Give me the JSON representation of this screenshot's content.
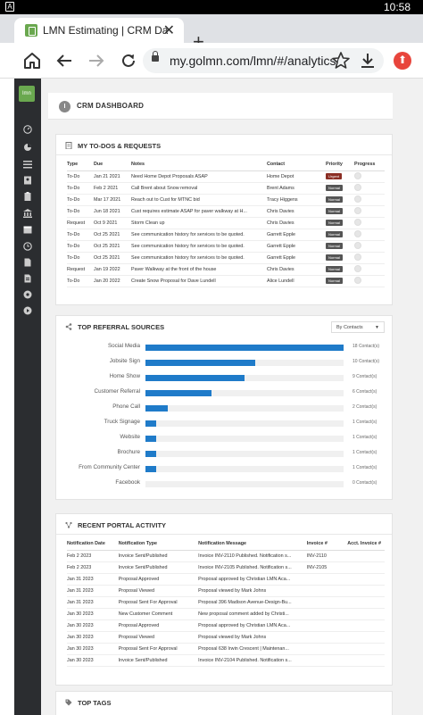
{
  "status_bar": {
    "time": "10:58",
    "notification_icon": "A"
  },
  "browser": {
    "tab_title": "LMN Estimating | CRM Dashb",
    "tab_close": "✕",
    "new_tab": "+",
    "url": "my.golmn.com/lmn/#/analytics/"
  },
  "app": {
    "logo_text": "lmn",
    "page_title": "CRM DASHBOARD",
    "sidebar_icons": [
      "speedometer-icon",
      "pie-chart-icon",
      "list-icon",
      "contact-card-icon",
      "clipboard-icon",
      "bank-icon",
      "calendar-icon",
      "clock-icon",
      "document-icon",
      "file-icon",
      "settings-gear-icon",
      "play-circle-icon"
    ]
  },
  "todos": {
    "title": "MY TO-DOS & REQUESTS",
    "columns": [
      "Type",
      "Due",
      "Notes",
      "Contact",
      "Priority",
      "Progress"
    ],
    "rows": [
      {
        "type": "To-Do",
        "due": "Jan 21 2021",
        "notes": "Need Home Depot Proposals ASAP",
        "contact": "Home Depot",
        "priority": "Urgent"
      },
      {
        "type": "To-Do",
        "due": "Feb 2 2021",
        "notes": "Call Brent about Snow removal",
        "contact": "Brent Adams",
        "priority": "Normal"
      },
      {
        "type": "To-Do",
        "due": "Mar 17 2021",
        "notes": "Reach out to Cust for MTNC bid",
        "contact": "Tracy Higgens",
        "priority": "Normal"
      },
      {
        "type": "To-Do",
        "due": "Jun 18 2021",
        "notes": "Cust requires estimate ASAP for paver walkway at H...",
        "contact": "Chris Davies",
        "priority": "Normal"
      },
      {
        "type": "Request",
        "due": "Oct 9 2021",
        "notes": "Storm Clean up",
        "contact": "Chris Davies",
        "priority": "Normal"
      },
      {
        "type": "To-Do",
        "due": "Oct 25 2021",
        "notes": "See communication history for services to be quoted.",
        "contact": "Garrett Epple",
        "priority": "Normal"
      },
      {
        "type": "To-Do",
        "due": "Oct 25 2021",
        "notes": "See communication history for services to be quoted.",
        "contact": "Garrett Epple",
        "priority": "Normal"
      },
      {
        "type": "To-Do",
        "due": "Oct 25 2021",
        "notes": "See communication history for services to be quoted.",
        "contact": "Garrett Epple",
        "priority": "Normal"
      },
      {
        "type": "Request",
        "due": "Jan 19 2022",
        "notes": "Paver Walkway at the front of the house",
        "contact": "Chris Davies",
        "priority": "Normal"
      },
      {
        "type": "To-Do",
        "due": "Jan 20 2022",
        "notes": "Create Snow Proposal for Dave Lundell",
        "contact": "Alice Lundell",
        "priority": "Normal"
      }
    ]
  },
  "referrals": {
    "title": "TOP REFERRAL SOURCES",
    "dropdown": "By Contacts",
    "max": 18,
    "items": [
      {
        "label": "Social Media",
        "value": 18,
        "text": "18 Contact(s)"
      },
      {
        "label": "Jobsite Sign",
        "value": 10,
        "text": "10 Contact(s)"
      },
      {
        "label": "Home Show",
        "value": 9,
        "text": "9 Contact(s)"
      },
      {
        "label": "Customer Referral",
        "value": 6,
        "text": "6 Contact(s)"
      },
      {
        "label": "Phone Call",
        "value": 2,
        "text": "2 Contact(s)"
      },
      {
        "label": "Truck Signage",
        "value": 1,
        "text": "1 Contact(s)"
      },
      {
        "label": "Website",
        "value": 1,
        "text": "1 Contact(s)"
      },
      {
        "label": "Brochure",
        "value": 1,
        "text": "1 Contact(s)"
      },
      {
        "label": "From Community Center",
        "value": 1,
        "text": "1 Contact(s)"
      },
      {
        "label": "Facebook",
        "value": 0,
        "text": "0 Contact(s)"
      }
    ]
  },
  "portal": {
    "title": "RECENT PORTAL ACTIVITY",
    "columns": [
      "Notification Date",
      "Notification Type",
      "Notification Message",
      "Invoice #",
      "Acct. Invoice #"
    ],
    "rows": [
      {
        "date": "Feb 2 2023",
        "type": "Invoice Sent/Published",
        "message": "Invoice INV-2110 Published. Notification s...",
        "invoice": "INV-2110",
        "acct": ""
      },
      {
        "date": "Feb 2 2023",
        "type": "Invoice Sent/Published",
        "message": "Invoice INV-2105 Published. Notification s...",
        "invoice": "INV-2105",
        "acct": ""
      },
      {
        "date": "Jan 31 2023",
        "type": "Proposal Approved",
        "message": "Proposal approved by Christian LMN Aca...",
        "invoice": "",
        "acct": ""
      },
      {
        "date": "Jan 31 2023",
        "type": "Proposal Viewed",
        "message": "Proposal viewed by Mark Johns",
        "invoice": "",
        "acct": ""
      },
      {
        "date": "Jan 31 2023",
        "type": "Proposal Sent For Approval",
        "message": "Proposal 396 Madison Avenue-Design-Bu...",
        "invoice": "",
        "acct": ""
      },
      {
        "date": "Jan 30 2023",
        "type": "New Customer Comment",
        "message": "New proposal comment added by Christi...",
        "invoice": "",
        "acct": ""
      },
      {
        "date": "Jan 30 2023",
        "type": "Proposal Approved",
        "message": "Proposal approved by Christian LMN Aca...",
        "invoice": "",
        "acct": ""
      },
      {
        "date": "Jan 30 2023",
        "type": "Proposal Viewed",
        "message": "Proposal viewed by Mark Johns",
        "invoice": "",
        "acct": ""
      },
      {
        "date": "Jan 30 2023",
        "type": "Proposal Sent For Approval",
        "message": "Proposal 638 Irwin Crescent | Maintenan...",
        "invoice": "",
        "acct": ""
      },
      {
        "date": "Jan 30 2023",
        "type": "Invoice Sent/Published",
        "message": "Invoice INV-2104 Published. Notification s...",
        "invoice": "",
        "acct": ""
      }
    ]
  },
  "tags": {
    "title": "TOP TAGS"
  }
}
